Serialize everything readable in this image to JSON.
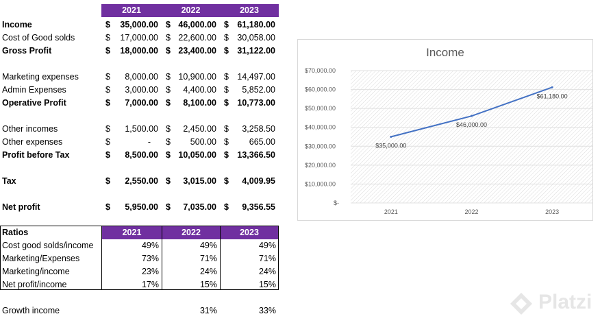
{
  "header": {
    "years": [
      "2021",
      "2022",
      "2023"
    ]
  },
  "statement": [
    {
      "label": "Income",
      "bold": true,
      "cells": [
        [
          "$",
          "35,000.00"
        ],
        [
          "$",
          "46,000.00"
        ],
        [
          "$",
          "61,180.00"
        ]
      ]
    },
    {
      "label": "Cost of Good solds",
      "bold": false,
      "cells": [
        [
          "$",
          "17,000.00"
        ],
        [
          "$",
          "22,600.00"
        ],
        [
          "$",
          "30,058.00"
        ]
      ]
    },
    {
      "label": "Gross Profit",
      "bold": true,
      "cells": [
        [
          "$",
          "18,000.00"
        ],
        [
          "$",
          "23,400.00"
        ],
        [
          "$",
          "31,122.00"
        ]
      ]
    },
    {
      "label": "Marketing expenses",
      "bold": false,
      "cells": [
        [
          "$",
          "8,000.00"
        ],
        [
          "$",
          "10,900.00"
        ],
        [
          "$",
          "14,497.00"
        ]
      ]
    },
    {
      "label": "Admin Expenses",
      "bold": false,
      "cells": [
        [
          "$",
          "3,000.00"
        ],
        [
          "$",
          "4,400.00"
        ],
        [
          "$",
          "5,852.00"
        ]
      ]
    },
    {
      "label": "Operative Profit",
      "bold": true,
      "cells": [
        [
          "$",
          "7,000.00"
        ],
        [
          "$",
          "8,100.00"
        ],
        [
          "$",
          "10,773.00"
        ]
      ]
    },
    {
      "label": "Other incomes",
      "bold": false,
      "cells": [
        [
          "$",
          "1,500.00"
        ],
        [
          "$",
          "2,450.00"
        ],
        [
          "$",
          "3,258.50"
        ]
      ]
    },
    {
      "label": "Other expenses",
      "bold": false,
      "cells": [
        [
          "$",
          "-"
        ],
        [
          "$",
          "500.00"
        ],
        [
          "$",
          "665.00"
        ]
      ]
    },
    {
      "label": "Profit before Tax",
      "bold": true,
      "cells": [
        [
          "$",
          "8,500.00"
        ],
        [
          "$",
          "10,050.00"
        ],
        [
          "$",
          "13,366.50"
        ]
      ]
    },
    {
      "label": "Tax",
      "bold": true,
      "cells": [
        [
          "$",
          "2,550.00"
        ],
        [
          "$",
          "3,015.00"
        ],
        [
          "$",
          "4,009.95"
        ]
      ]
    },
    {
      "label": "Net profit",
      "bold": true,
      "cells": [
        [
          "$",
          "5,950.00"
        ],
        [
          "$",
          "7,035.00"
        ],
        [
          "$",
          "9,356.55"
        ]
      ]
    }
  ],
  "ratios": {
    "title": "Ratios",
    "years": [
      "2021",
      "2022",
      "2023"
    ],
    "rows": [
      {
        "label": "Cost good solds/income",
        "values": [
          "49%",
          "49%",
          "49%"
        ]
      },
      {
        "label": "Marketing/Expenses",
        "values": [
          "73%",
          "71%",
          "71%"
        ]
      },
      {
        "label": "Marketing/income",
        "values": [
          "23%",
          "24%",
          "24%"
        ]
      },
      {
        "label": "Net profit/income",
        "values": [
          "17%",
          "15%",
          "15%"
        ]
      }
    ]
  },
  "growth": {
    "label": "Growth income",
    "values": [
      "",
      "31%",
      "33%"
    ]
  },
  "colors": {
    "header_bg": "#7030a0",
    "line": "#4472c4"
  },
  "chart_data": {
    "type": "line",
    "title": "Income",
    "categories": [
      "2021",
      "2022",
      "2023"
    ],
    "series": [
      {
        "name": "Income",
        "values": [
          35000,
          46000,
          61180
        ]
      }
    ],
    "data_labels": [
      "$35,000.00",
      "$46,000.00",
      "$61,180.00"
    ],
    "y_ticks": [
      {
        "value": 0,
        "label": "$-"
      },
      {
        "value": 10000,
        "label": "$10,000.00"
      },
      {
        "value": 20000,
        "label": "$20,000.00"
      },
      {
        "value": 30000,
        "label": "$30,000.00"
      },
      {
        "value": 40000,
        "label": "$40,000.00"
      },
      {
        "value": 50000,
        "label": "$50,000.00"
      },
      {
        "value": 60000,
        "label": "$60,000.00"
      },
      {
        "value": 70000,
        "label": "$70,000.00"
      }
    ],
    "ylim": [
      0,
      70000
    ],
    "grid": true,
    "xlabel": "",
    "ylabel": ""
  },
  "watermark": {
    "text": "Platzi",
    "icon": "platzi-logo-icon"
  }
}
